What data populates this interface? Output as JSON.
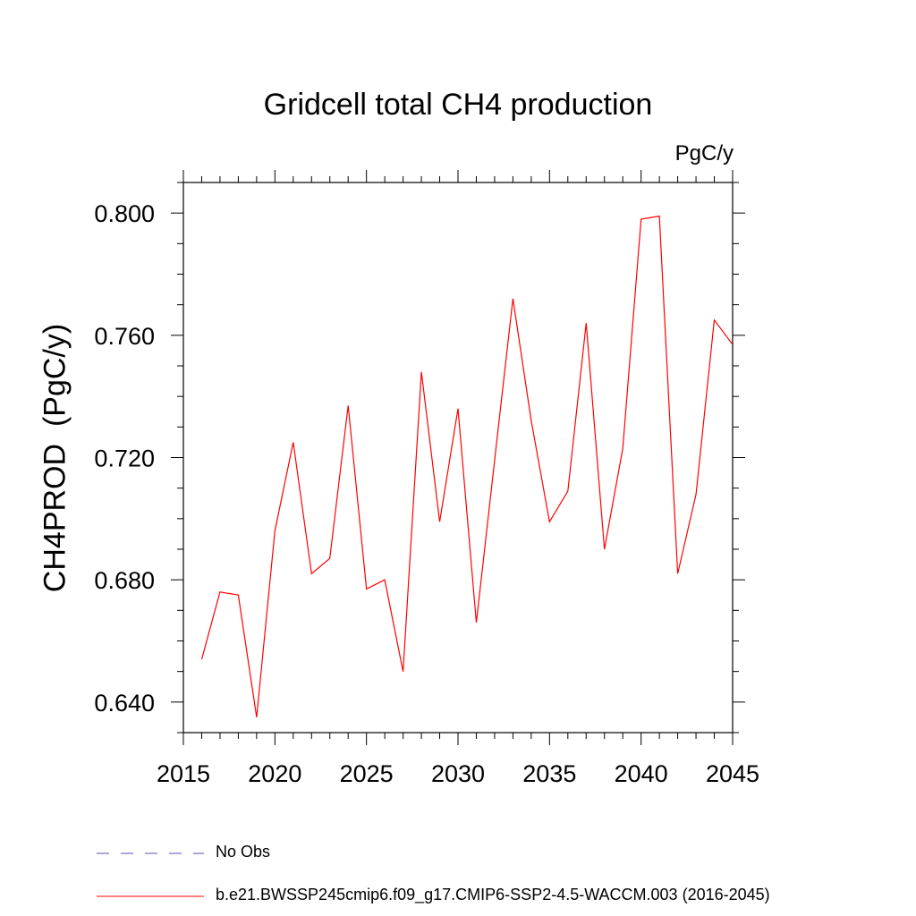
{
  "chart_data": {
    "type": "line",
    "title": "Gridcell total CH4 production",
    "units": "PgC/y",
    "ylabel": "CH4PROD  (PgC/y)",
    "xlabel": "",
    "xlim": [
      2015,
      2045
    ],
    "ylim": [
      0.63,
      0.81
    ],
    "xticks": [
      "2015",
      "2020",
      "2025",
      "2030",
      "2035",
      "2040",
      "2045"
    ],
    "yticks": [
      "0.640",
      "0.680",
      "0.720",
      "0.760",
      "0.800"
    ],
    "grid": false,
    "legend_placement": "bottom",
    "x": [
      2016,
      2017,
      2018,
      2019,
      2020,
      2021,
      2022,
      2023,
      2024,
      2025,
      2026,
      2027,
      2028,
      2029,
      2030,
      2031,
      2032,
      2033,
      2034,
      2035,
      2036,
      2037,
      2038,
      2039,
      2040,
      2041,
      2042,
      2043,
      2044,
      2045
    ],
    "series": [
      {
        "name": "b.e21.BWSSP245cmip6.f09_g17.CMIP6-SSP2-4.5-WACCM.003 (2016-2045)",
        "color": "#ff0000",
        "style": "solid",
        "values": [
          0.654,
          0.676,
          0.675,
          0.635,
          0.696,
          0.725,
          0.682,
          0.687,
          0.737,
          0.677,
          0.68,
          0.65,
          0.748,
          0.699,
          0.736,
          0.666,
          0.719,
          0.772,
          0.732,
          0.699,
          0.709,
          0.764,
          0.69,
          0.723,
          0.798,
          0.799,
          0.682,
          0.708,
          0.765,
          0.757
        ]
      }
    ],
    "legend": [
      {
        "label": "No Obs",
        "color": "#5a4fa8",
        "style": "dashed"
      },
      {
        "label": "b.e21.BWSSP245cmip6.f09_g17.CMIP6-SSP2-4.5-WACCM.003 (2016-2045)",
        "color": "#ff0000",
        "style": "solid"
      }
    ]
  }
}
